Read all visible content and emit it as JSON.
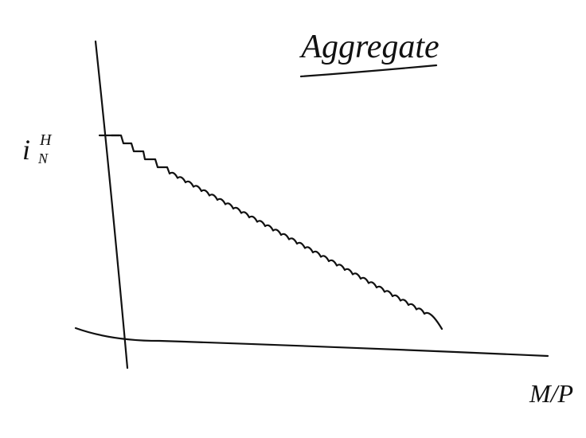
{
  "title": "Aggregate",
  "y_axis": {
    "label": "i",
    "superscript": "H",
    "subscript": "N"
  },
  "x_axis": {
    "label": "M/P"
  }
}
